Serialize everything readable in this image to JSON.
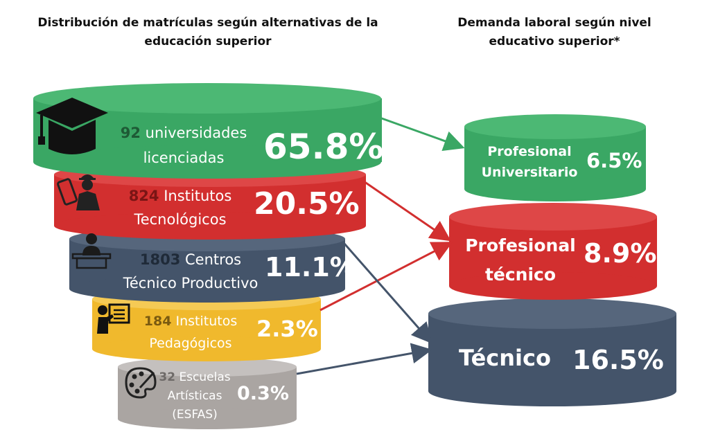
{
  "title_left": "Distribución de matrículas según alternativas de la educación superior",
  "title_right": "Demanda laboral según nivel educativo superior*",
  "funnel": [
    {
      "count": "92",
      "name_line1": "universidades",
      "name_line2": "licenciadas",
      "pct": "65.8%",
      "icon": "graduation-cap-icon",
      "color": "#3aa764",
      "count_color": "#1e5a35"
    },
    {
      "count": "824",
      "name_line1": "Institutos",
      "name_line2": "Tecnológicos",
      "pct": "20.5%",
      "icon": "engineer-icon",
      "color": "#d22f2f",
      "count_color": "#7a1515"
    },
    {
      "count": "1803",
      "name_line1": "Centros",
      "name_line2": "Técnico Productivo",
      "pct": "11.1%",
      "icon": "speaker-podium-icon",
      "color": "#44546a",
      "count_color": "#1f2a38"
    },
    {
      "count": "184",
      "name_line1": "Institutos",
      "name_line2": "Pedagógicos",
      "pct": "2.3%",
      "icon": "teacher-board-icon",
      "color": "#f0b92d",
      "count_color": "#7a5a10"
    },
    {
      "count": "32",
      "name_line1": "Escuelas",
      "name_line2": "Artísticas",
      "name_line3": "(ESFAS)",
      "pct": "0.3%",
      "icon": "art-palette-icon",
      "color": "#aaa5a2",
      "count_color": "#6e6a68"
    }
  ],
  "demand": [
    {
      "name_line1": "Profesional",
      "name_line2": "Universitario",
      "pct": "6.5%",
      "color": "#3aa764"
    },
    {
      "name_line1": "Profesional",
      "name_line2": "técnico",
      "pct": "8.9%",
      "color": "#d22f2f"
    },
    {
      "name_line1": "Técnico",
      "pct": "16.5%",
      "color": "#44546a"
    }
  ]
}
